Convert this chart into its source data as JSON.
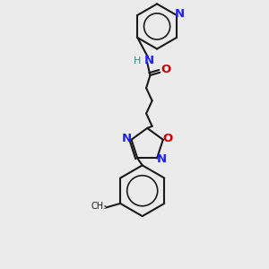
{
  "bg_color": "#ebebeb",
  "bond_color": "#1a1a1a",
  "N_color": "#2020ee",
  "O_color": "#cc0000",
  "H_color": "#3a8888",
  "figsize": [
    3.0,
    3.0
  ],
  "dpi": 100,
  "bond_lw": 1.5,
  "font_size": 8.5,
  "xlim": [
    60,
    220
  ],
  "ylim": [
    15,
    290
  ]
}
